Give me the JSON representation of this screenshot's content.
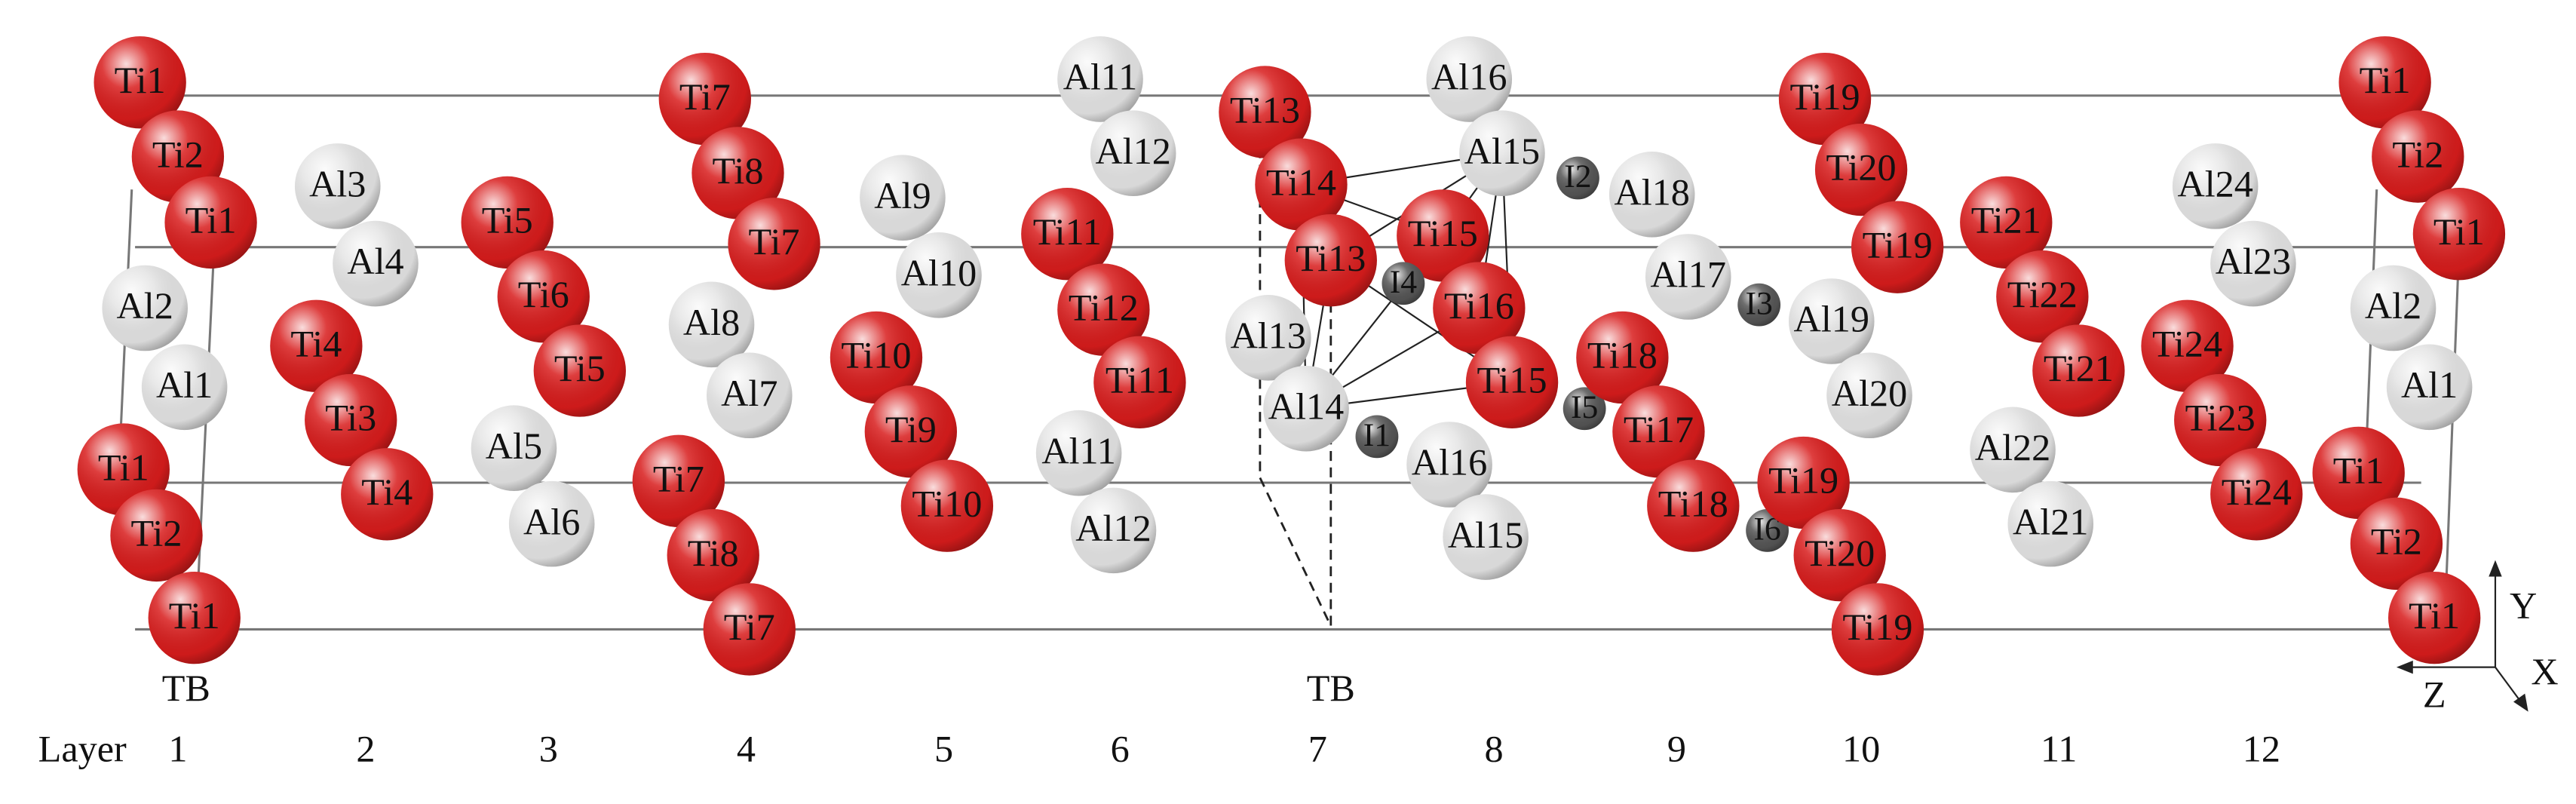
{
  "atoms": [
    {
      "label": "Ti1",
      "color": "#d81c1c"
    },
    {
      "label": "Ti2",
      "color": "#d81c1c"
    },
    {
      "label": "Ti1",
      "color": "#d81c1c"
    },
    {
      "label": "Al2",
      "color": "#e4e4e4"
    },
    {
      "label": "Al1",
      "color": "#e4e4e4"
    },
    {
      "label": "Ti1",
      "color": "#d81c1c"
    },
    {
      "label": "Ti2",
      "color": "#d81c1c"
    },
    {
      "label": "Ti1",
      "color": "#d81c1c"
    },
    {
      "label": "Al3",
      "color": "#e4e4e4"
    },
    {
      "label": "Al4",
      "color": "#e4e4e4"
    },
    {
      "label": "Ti4",
      "color": "#d81c1c"
    },
    {
      "label": "Ti3",
      "color": "#d81c1c"
    },
    {
      "label": "Ti4",
      "color": "#d81c1c"
    },
    {
      "label": "Ti5",
      "color": "#d81c1c"
    },
    {
      "label": "Ti6",
      "color": "#d81c1c"
    },
    {
      "label": "Ti5",
      "color": "#d81c1c"
    },
    {
      "label": "Al5",
      "color": "#e4e4e4"
    },
    {
      "label": "Al6",
      "color": "#e4e4e4"
    },
    {
      "label": "Ti7",
      "color": "#d81c1c"
    },
    {
      "label": "Ti8",
      "color": "#d81c1c"
    },
    {
      "label": "Ti7",
      "color": "#d81c1c"
    },
    {
      "label": "Al8",
      "color": "#e4e4e4"
    },
    {
      "label": "Al7",
      "color": "#e4e4e4"
    },
    {
      "label": "Ti7",
      "color": "#d81c1c"
    },
    {
      "label": "Ti8",
      "color": "#d81c1c"
    },
    {
      "label": "Ti7",
      "color": "#d81c1c"
    },
    {
      "label": "Al9",
      "color": "#e4e4e4"
    },
    {
      "label": "Al10",
      "color": "#e4e4e4"
    },
    {
      "label": "Ti10",
      "color": "#d81c1c"
    },
    {
      "label": "Ti9",
      "color": "#d81c1c"
    },
    {
      "label": "Ti10",
      "color": "#d81c1c"
    },
    {
      "label": "Al11",
      "color": "#e4e4e4"
    },
    {
      "label": "Al12",
      "color": "#e4e4e4"
    },
    {
      "label": "Ti11",
      "color": "#d81c1c"
    },
    {
      "label": "Ti12",
      "color": "#d81c1c"
    },
    {
      "label": "Ti11",
      "color": "#d81c1c"
    },
    {
      "label": "Al11",
      "color": "#e4e4e4"
    },
    {
      "label": "Al12",
      "color": "#e4e4e4"
    },
    {
      "label": "Al13",
      "color": "#e4e4e4"
    },
    {
      "label": "Al14",
      "color": "#e4e4e4"
    },
    {
      "label": "I1",
      "color": "#555555"
    },
    {
      "label": "Al16",
      "color": "#e4e4e4"
    },
    {
      "label": "Al15",
      "color": "#e4e4e4"
    },
    {
      "label": "I2",
      "color": "#555555"
    },
    {
      "label": "Ti13",
      "color": "#d81c1c"
    },
    {
      "label": "Ti14",
      "color": "#d81c1c"
    },
    {
      "label": "Ti15",
      "color": "#d81c1c"
    },
    {
      "label": "Ti13",
      "color": "#d81c1c"
    },
    {
      "label": "I4",
      "color": "#555555"
    },
    {
      "label": "Ti16",
      "color": "#d81c1c"
    },
    {
      "label": "Ti15",
      "color": "#d81c1c"
    },
    {
      "label": "I5",
      "color": "#555555"
    },
    {
      "label": "Al16",
      "color": "#e4e4e4"
    },
    {
      "label": "Al15",
      "color": "#e4e4e4"
    },
    {
      "label": "Al18",
      "color": "#e4e4e4"
    },
    {
      "label": "Al17",
      "color": "#e4e4e4"
    },
    {
      "label": "I3",
      "color": "#555555"
    },
    {
      "label": "Ti18",
      "color": "#d81c1c"
    },
    {
      "label": "Ti17",
      "color": "#d81c1c"
    },
    {
      "label": "Ti18",
      "color": "#d81c1c"
    },
    {
      "label": "Ti19",
      "color": "#d81c1c"
    },
    {
      "label": "Ti20",
      "color": "#d81c1c"
    },
    {
      "label": "Ti19",
      "color": "#d81c1c"
    },
    {
      "label": "Al19",
      "color": "#e4e4e4"
    },
    {
      "label": "Al20",
      "color": "#e4e4e4"
    },
    {
      "label": "I6",
      "color": "#555555"
    },
    {
      "label": "Ti19",
      "color": "#d81c1c"
    },
    {
      "label": "Ti20",
      "color": "#d81c1c"
    },
    {
      "label": "Ti19",
      "color": "#d81c1c"
    },
    {
      "label": "Ti21",
      "color": "#d81c1c"
    },
    {
      "label": "Ti22",
      "color": "#d81c1c"
    },
    {
      "label": "Ti21",
      "color": "#d81c1c"
    },
    {
      "label": "Al22",
      "color": "#e4e4e4"
    },
    {
      "label": "Al21",
      "color": "#e4e4e4"
    },
    {
      "label": "Al24",
      "color": "#e4e4e4"
    },
    {
      "label": "Al23",
      "color": "#e4e4e4"
    },
    {
      "label": "Ti24",
      "color": "#d81c1c"
    },
    {
      "label": "Ti23",
      "color": "#d81c1c"
    },
    {
      "label": "Ti24",
      "color": "#d81c1c"
    },
    {
      "label": "Ti1",
      "color": "#d81c1c"
    },
    {
      "label": "Ti2",
      "color": "#d81c1c"
    },
    {
      "label": "Ti1",
      "color": "#d81c1c"
    },
    {
      "label": "Al2",
      "color": "#e4e4e4"
    },
    {
      "label": "Al1",
      "color": "#e4e4e4"
    },
    {
      "label": "Ti1",
      "color": "#d81c1c"
    },
    {
      "label": "Ti2",
      "color": "#d81c1c"
    },
    {
      "label": "Ti1",
      "color": "#d81c1c"
    }
  ],
  "tb_labels": [
    "TB",
    "TB"
  ],
  "layer_label": "Layer",
  "layers": [
    "1",
    "2",
    "3",
    "4",
    "5",
    "6",
    "7",
    "8",
    "9",
    "10",
    "11",
    "12"
  ],
  "axes": [
    "Y",
    "Z",
    "X"
  ]
}
